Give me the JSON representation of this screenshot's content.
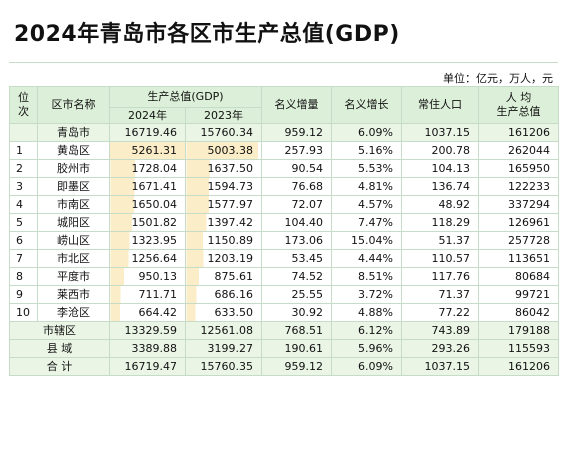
{
  "title": "2024年青岛市各区市生产总值(GDP)",
  "unit": "单位：亿元，万人，元",
  "headers": {
    "rank_line1": "位",
    "rank_line2": "次",
    "name": "区市名称",
    "gdp": "生产总值(GDP)",
    "y2024": "2024年",
    "y2023": "2023年",
    "nominal_increase": "名义增量",
    "nominal_growth": "名义增长",
    "population": "常住人口",
    "per_capita_line1": "人 均",
    "per_capita_line2": "生产总值"
  },
  "qingdao": {
    "name": "青岛市",
    "gdp2024": "16719.46",
    "gdp2023": "15760.34",
    "inc": "959.12",
    "growth": "6.09%",
    "pop": "1037.15",
    "pc": "161206"
  },
  "rows": [
    {
      "rank": "1",
      "name": "黄岛区",
      "gdp2024": "5261.31",
      "gdp2023": "5003.38",
      "inc": "257.93",
      "growth": "5.16%",
      "pop": "200.78",
      "pc": "262044"
    },
    {
      "rank": "2",
      "name": "胶州市",
      "gdp2024": "1728.04",
      "gdp2023": "1637.50",
      "inc": "90.54",
      "growth": "5.53%",
      "pop": "104.13",
      "pc": "165950"
    },
    {
      "rank": "3",
      "name": "即墨区",
      "gdp2024": "1671.41",
      "gdp2023": "1594.73",
      "inc": "76.68",
      "growth": "4.81%",
      "pop": "136.74",
      "pc": "122233"
    },
    {
      "rank": "4",
      "name": "市南区",
      "gdp2024": "1650.04",
      "gdp2023": "1577.97",
      "inc": "72.07",
      "growth": "4.57%",
      "pop": "48.92",
      "pc": "337294"
    },
    {
      "rank": "5",
      "name": "城阳区",
      "gdp2024": "1501.82",
      "gdp2023": "1397.42",
      "inc": "104.40",
      "growth": "7.47%",
      "pop": "118.29",
      "pc": "126961"
    },
    {
      "rank": "6",
      "name": "崂山区",
      "gdp2024": "1323.95",
      "gdp2023": "1150.89",
      "inc": "173.06",
      "growth": "15.04%",
      "pop": "51.37",
      "pc": "257728"
    },
    {
      "rank": "7",
      "name": "市北区",
      "gdp2024": "1256.64",
      "gdp2023": "1203.19",
      "inc": "53.45",
      "growth": "4.44%",
      "pop": "110.57",
      "pc": "113651"
    },
    {
      "rank": "8",
      "name": "平度市",
      "gdp2024": "950.13",
      "gdp2023": "875.61",
      "inc": "74.52",
      "growth": "8.51%",
      "pop": "117.76",
      "pc": "80684"
    },
    {
      "rank": "9",
      "name": "莱西市",
      "gdp2024": "711.71",
      "gdp2023": "686.16",
      "inc": "25.55",
      "growth": "3.72%",
      "pop": "71.37",
      "pc": "99721"
    },
    {
      "rank": "10",
      "name": "李沧区",
      "gdp2024": "664.42",
      "gdp2023": "633.50",
      "inc": "30.92",
      "growth": "4.88%",
      "pop": "77.22",
      "pc": "86042"
    }
  ],
  "summary": [
    {
      "name": "市辖区",
      "gdp2024": "13329.59",
      "gdp2023": "12561.08",
      "inc": "768.51",
      "growth": "6.12%",
      "pop": "743.89",
      "pc": "179188"
    },
    {
      "name": "县 域",
      "gdp2024": "3389.88",
      "gdp2023": "3199.27",
      "inc": "190.61",
      "growth": "5.96%",
      "pop": "293.26",
      "pc": "115593"
    },
    {
      "name": "合 计",
      "gdp2024": "16719.47",
      "gdp2023": "15760.35",
      "inc": "959.12",
      "growth": "6.09%",
      "pop": "1037.15",
      "pc": "161206"
    }
  ]
}
